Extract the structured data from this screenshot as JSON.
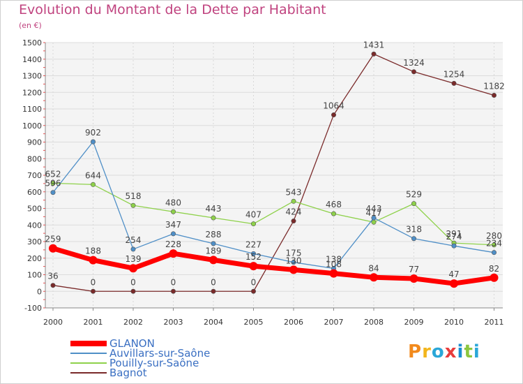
{
  "title": "Evolution du Montant de la Dette par Habitant",
  "subtitle": "(en €)",
  "brand": "Proxiti",
  "brand_colors": [
    "#f28a1c",
    "#f2b51c",
    "#2aa7d8",
    "#e83c3c",
    "#1b8fd1",
    "#8cc63f",
    "#2aa7d8"
  ],
  "chart_data": {
    "type": "line",
    "x": [
      "2000",
      "2001",
      "2002",
      "2003",
      "2004",
      "2005",
      "2006",
      "2007",
      "2008",
      "2009",
      "2010",
      "2011"
    ],
    "ylim": [
      -100,
      1500
    ],
    "yticks": [
      "-100",
      "0",
      "100",
      "200",
      "300",
      "400",
      "500",
      "600",
      "700",
      "800",
      "900",
      "1000",
      "1100",
      "1200",
      "1300",
      "1400",
      "1500"
    ],
    "grid": true,
    "legend_position": "bottom-left",
    "series": [
      {
        "name": "GLANON",
        "color": "#ff0000",
        "values": [
          259,
          188,
          139,
          228,
          189,
          152,
          130,
          108,
          84,
          77,
          47,
          82
        ],
        "labels": [
          "259",
          "188",
          "139",
          "228",
          "189",
          "152",
          "130",
          "108",
          "84",
          "77",
          "47",
          "82"
        ]
      },
      {
        "name": "Auvillars-sur-Saône",
        "color": "#4f8fc7",
        "values": [
          596,
          902,
          254,
          347,
          288,
          227,
          175,
          138,
          443,
          318,
          274,
          234
        ],
        "labels": [
          "596",
          "902",
          "254",
          "347",
          "288",
          "227",
          "175",
          "138",
          "443",
          "318",
          "274",
          "234"
        ]
      },
      {
        "name": "Pouilly-sur-Saône",
        "color": "#8ed14a",
        "values": [
          652,
          644,
          518,
          480,
          443,
          407,
          543,
          468,
          417,
          529,
          291,
          280
        ],
        "labels": [
          "652",
          "644",
          "518",
          "480",
          "443",
          "407",
          "543",
          "468",
          "417",
          "529",
          "291",
          "280"
        ]
      },
      {
        "name": "Bagnot",
        "color": "#7a2a2a",
        "values": [
          36,
          0,
          0,
          0,
          0,
          0,
          424,
          1064,
          1431,
          1324,
          1254,
          1182
        ],
        "labels": [
          "36",
          "0",
          "0",
          "0",
          "0",
          "0",
          "424",
          "1064",
          "1431",
          "1324",
          "1254",
          "1182"
        ]
      }
    ]
  }
}
